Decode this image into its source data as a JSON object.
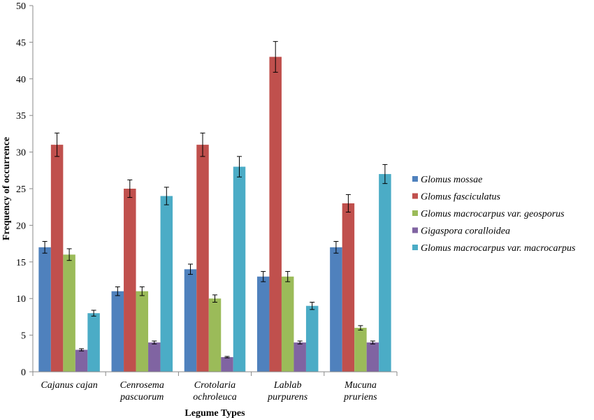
{
  "chart_data": {
    "type": "bar",
    "title": "",
    "xlabel": "Legume Types",
    "ylabel": "Frequency of occurrence",
    "ylim": [
      0,
      50
    ],
    "yticks": [
      0,
      5,
      10,
      15,
      20,
      25,
      30,
      35,
      40,
      45,
      50
    ],
    "grid": false,
    "legend_position": "right",
    "categories": [
      [
        "Cajanus cajan"
      ],
      [
        "Cenrosema",
        "pascuorum"
      ],
      [
        "Crotolaria",
        "ochroleuca"
      ],
      [
        "Lablab",
        "purpurens"
      ],
      [
        "Mucuna",
        "pruriens"
      ]
    ],
    "series": [
      {
        "name": "Glomus mossae",
        "color": "#4f81bd",
        "values": [
          17,
          11,
          14,
          13,
          17
        ],
        "errors": [
          0.8,
          0.6,
          0.7,
          0.7,
          0.8
        ]
      },
      {
        "name": "Glomus fasciculatus",
        "color": "#c0504d",
        "values": [
          31,
          25,
          31,
          43,
          23
        ],
        "errors": [
          1.6,
          1.2,
          1.6,
          2.1,
          1.2
        ]
      },
      {
        "name": "Glomus macrocarpus var. geosporus",
        "color": "#9bbb59",
        "values": [
          16,
          11,
          10,
          13,
          6
        ],
        "errors": [
          0.8,
          0.6,
          0.5,
          0.7,
          0.3
        ]
      },
      {
        "name": "Gigaspora coralloidea",
        "color": "#8064a2",
        "values": [
          3,
          4,
          2,
          4,
          4
        ],
        "errors": [
          0.15,
          0.2,
          0.1,
          0.2,
          0.2
        ]
      },
      {
        "name": "Glomus macrocarpus var. macrocarpus",
        "color": "#4bacc6",
        "values": [
          8,
          24,
          28,
          9,
          27
        ],
        "errors": [
          0.4,
          1.2,
          1.4,
          0.5,
          1.3
        ]
      }
    ]
  }
}
